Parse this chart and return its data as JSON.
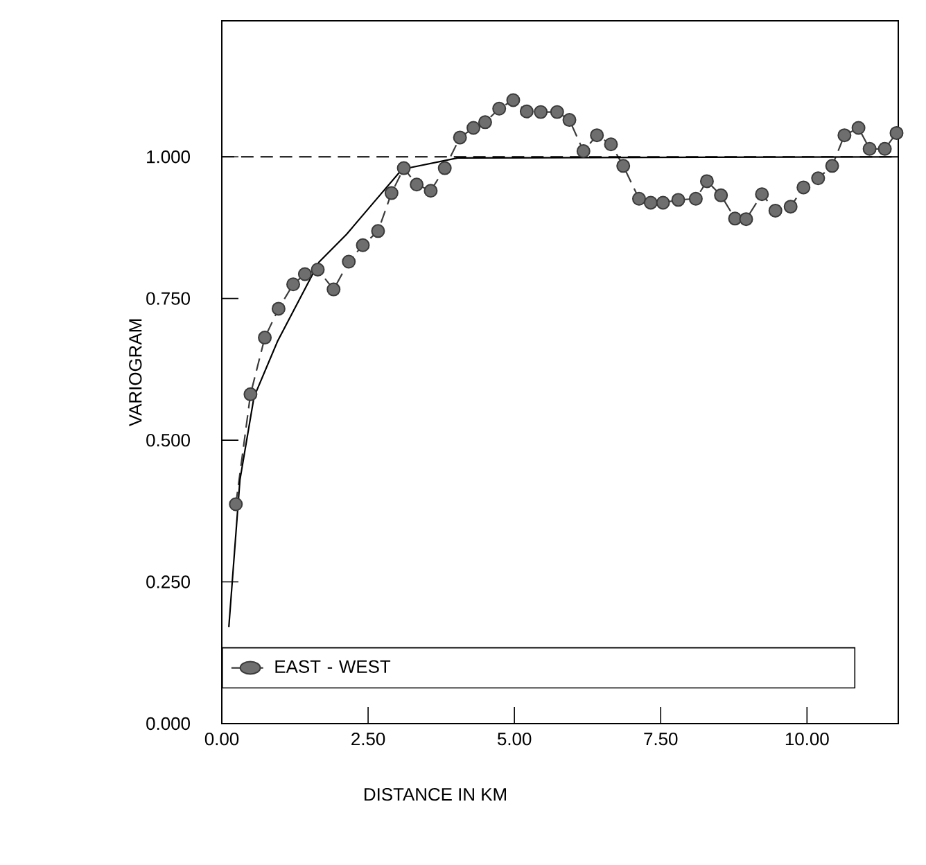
{
  "chart_data": {
    "type": "line",
    "xlabel": "DISTANCE IN KM",
    "ylabel": "VARIOGRAM",
    "xlim": [
      0,
      11.56
    ],
    "ylim": [
      0,
      1.24
    ],
    "xticks": [
      {
        "value": 0,
        "label": "0.00"
      },
      {
        "value": 2.5,
        "label": "2.50"
      },
      {
        "value": 5,
        "label": "5.00"
      },
      {
        "value": 7.5,
        "label": "7.50"
      },
      {
        "value": 10,
        "label": "10.00"
      }
    ],
    "yticks": [
      {
        "value": 0,
        "label": "0.000"
      },
      {
        "value": 0.25,
        "label": "0.250"
      },
      {
        "value": 0.5,
        "label": "0.500"
      },
      {
        "value": 0.75,
        "label": "0.750"
      },
      {
        "value": 1,
        "label": "1.000"
      }
    ],
    "legend": "bottom",
    "ref_lines": [
      {
        "axis": "y",
        "value": 1,
        "color": "#000000",
        "line_style": "dashed"
      }
    ],
    "series": [
      {
        "name": "EAST - WEST",
        "color": "#3a3a3a",
        "marker": "circle",
        "line_style": "dashed",
        "x": [
          0.24,
          0.49,
          0.735,
          0.97,
          1.22,
          1.42,
          1.64,
          1.91,
          2.17,
          2.41,
          2.67,
          2.9,
          3.11,
          3.33,
          3.57,
          3.81,
          4.07,
          4.3,
          4.5,
          4.74,
          4.98,
          5.21,
          5.45,
          5.73,
          5.94,
          6.18,
          6.41,
          6.65,
          6.86,
          7.13,
          7.33,
          7.54,
          7.8,
          8.1,
          8.29,
          8.53,
          8.77,
          8.96,
          9.23,
          9.46,
          9.72,
          9.94,
          10.19,
          10.43,
          10.64,
          10.88,
          11.07,
          11.33,
          11.53
        ],
        "values": [
          0.387,
          0.581,
          0.681,
          0.732,
          0.775,
          0.793,
          0.801,
          0.766,
          0.815,
          0.844,
          0.869,
          0.936,
          0.98,
          0.951,
          0.94,
          0.98,
          1.034,
          1.051,
          1.061,
          1.085,
          1.1,
          1.08,
          1.079,
          1.079,
          1.065,
          1.01,
          1.038,
          1.022,
          0.984,
          0.926,
          0.919,
          0.919,
          0.924,
          0.926,
          0.957,
          0.932,
          0.891,
          0.89,
          0.934,
          0.905,
          0.912,
          0.946,
          0.962,
          0.984,
          1.038,
          1.051,
          1.014,
          1.014,
          1.042
        ]
      },
      {
        "color": "#000000",
        "marker": "none",
        "line_style": "solid",
        "x": [
          0.12,
          0.31,
          0.55,
          0.95,
          1.66,
          2.13,
          2.6,
          3.08,
          4.03,
          11.56
        ],
        "values": [
          0.17,
          0.43,
          0.576,
          0.674,
          0.814,
          0.863,
          0.92,
          0.978,
          0.998,
          1.0
        ]
      }
    ]
  }
}
